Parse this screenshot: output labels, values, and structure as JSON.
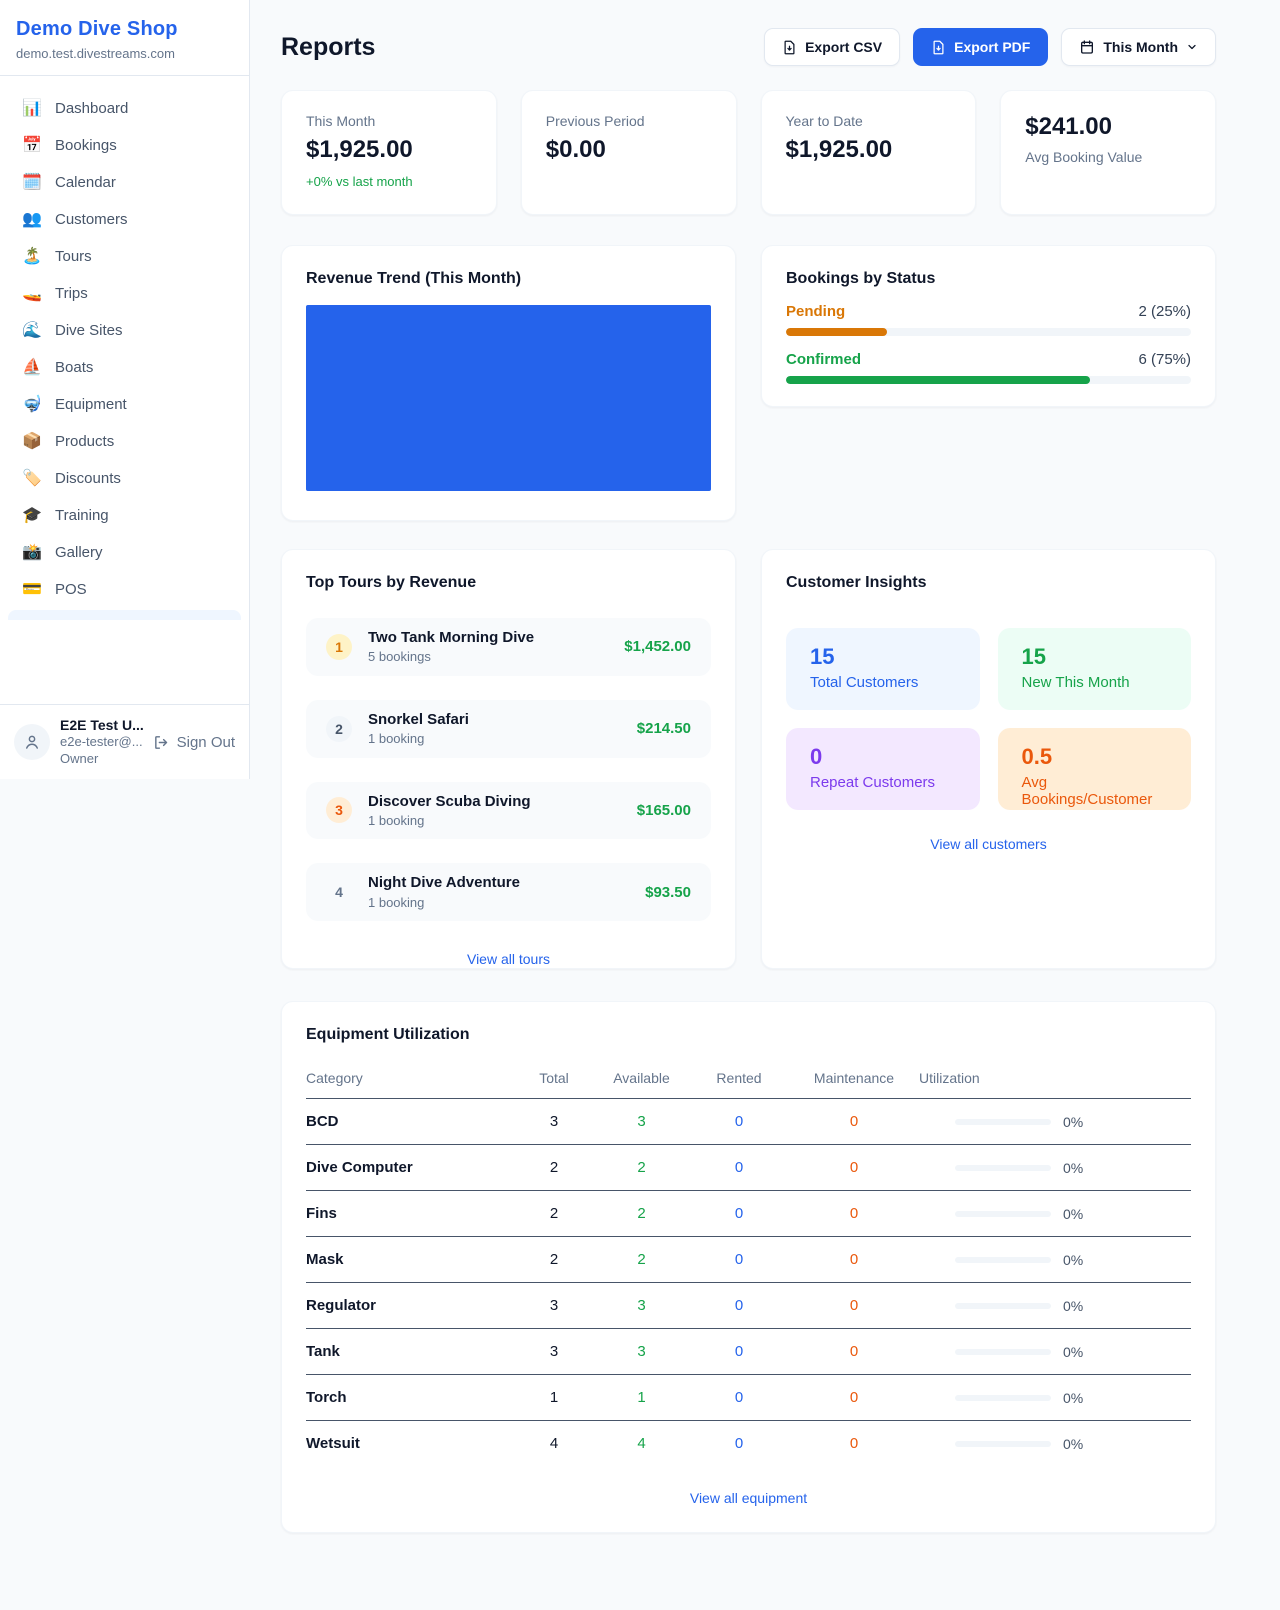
{
  "colors": {
    "accent": "#2563eb",
    "green": "#16a34a",
    "orange": "#d97706",
    "deep_orange": "#ea580c",
    "purple": "#7c3aed"
  },
  "sidebar": {
    "brand": "Demo Dive Shop",
    "domain": "demo.test.divestreams.com",
    "items": [
      {
        "slug": "dashboard",
        "icon": "📊",
        "label": "Dashboard"
      },
      {
        "slug": "bookings",
        "icon": "📅",
        "label": "Bookings"
      },
      {
        "slug": "calendar",
        "icon": "🗓️",
        "label": "Calendar"
      },
      {
        "slug": "customers",
        "icon": "👥",
        "label": "Customers"
      },
      {
        "slug": "tours",
        "icon": "🏝️",
        "label": "Tours"
      },
      {
        "slug": "trips",
        "icon": "🚤",
        "label": "Trips"
      },
      {
        "slug": "dive-sites",
        "icon": "🌊",
        "label": "Dive Sites"
      },
      {
        "slug": "boats",
        "icon": "⛵",
        "label": "Boats"
      },
      {
        "slug": "equipment",
        "icon": "🤿",
        "label": "Equipment"
      },
      {
        "slug": "products",
        "icon": "📦",
        "label": "Products"
      },
      {
        "slug": "discounts",
        "icon": "🏷️",
        "label": "Discounts"
      },
      {
        "slug": "training",
        "icon": "🎓",
        "label": "Training"
      },
      {
        "slug": "gallery",
        "icon": "📸",
        "label": "Gallery"
      },
      {
        "slug": "pos",
        "icon": "💳",
        "label": "POS"
      }
    ],
    "user": {
      "name": "E2E Test U...",
      "email": "e2e-tester@...",
      "role": "Owner",
      "sign_out": "Sign Out"
    }
  },
  "header": {
    "title": "Reports",
    "export_csv": "Export CSV",
    "export_pdf": "Export PDF",
    "period": "This Month"
  },
  "stats": [
    {
      "label": "This Month",
      "value": "$1,925.00",
      "delta": "+0% vs last month"
    },
    {
      "label": "Previous Period",
      "value": "$0.00"
    },
    {
      "label": "Year to Date",
      "value": "$1,925.00"
    },
    {
      "label": "Avg Booking Value",
      "value": "$241.00",
      "value_first": true
    }
  ],
  "revenue_trend": {
    "title": "Revenue Trend (This Month)",
    "chart": {
      "type": "bar",
      "bar_color": "#2563eb",
      "note": "single solid full-width bar, no axis labels visible"
    }
  },
  "bookings_by_status": {
    "title": "Bookings by Status",
    "rows": [
      {
        "label": "Pending",
        "value_text": "2 (25%)",
        "pct": 25,
        "color": "#d97706"
      },
      {
        "label": "Confirmed",
        "value_text": "6 (75%)",
        "pct": 75,
        "color": "#16a34a"
      }
    ]
  },
  "top_tours": {
    "title": "Top Tours by Revenue",
    "items": [
      {
        "rank": "1",
        "name": "Two Tank Morning Dive",
        "sub": "5 bookings",
        "amount": "$1,452.00",
        "badge_bg": "#fef3c7",
        "badge_fg": "#d97706"
      },
      {
        "rank": "2",
        "name": "Snorkel Safari",
        "sub": "1 booking",
        "amount": "$214.50",
        "badge_bg": "#f1f5f9",
        "badge_fg": "#475569"
      },
      {
        "rank": "3",
        "name": "Discover Scuba Diving",
        "sub": "1 booking",
        "amount": "$165.00",
        "badge_bg": "#ffedd5",
        "badge_fg": "#ea580c"
      },
      {
        "rank": "4",
        "name": "Night Dive Adventure",
        "sub": "1 booking",
        "amount": "$93.50",
        "badge_bg": "transparent",
        "badge_fg": "#64748b"
      }
    ],
    "view_all": "View all tours"
  },
  "customer_insights": {
    "title": "Customer Insights",
    "tiles": [
      {
        "value": "15",
        "label": "Total Customers",
        "bg": "#eff6ff",
        "fg": "#2563eb"
      },
      {
        "value": "15",
        "label": "New This Month",
        "bg": "#ecfdf5",
        "fg": "#16a34a"
      },
      {
        "value": "0",
        "label": "Repeat Customers",
        "bg": "#f3e8ff",
        "fg": "#7c3aed"
      },
      {
        "value": "0.5",
        "label": "Avg Bookings/Customer",
        "bg": "#ffedd5",
        "fg": "#ea580c"
      }
    ],
    "view_all": "View all customers"
  },
  "equipment": {
    "title": "Equipment Utilization",
    "columns": [
      "Category",
      "Total",
      "Available",
      "Rented",
      "Maintenance",
      "Utilization"
    ],
    "rows": [
      {
        "category": "BCD",
        "total": "3",
        "available": "3",
        "rented": "0",
        "maintenance": "0",
        "utilization": "0%"
      },
      {
        "category": "Dive Computer",
        "total": "2",
        "available": "2",
        "rented": "0",
        "maintenance": "0",
        "utilization": "0%"
      },
      {
        "category": "Fins",
        "total": "2",
        "available": "2",
        "rented": "0",
        "maintenance": "0",
        "utilization": "0%"
      },
      {
        "category": "Mask",
        "total": "2",
        "available": "2",
        "rented": "0",
        "maintenance": "0",
        "utilization": "0%"
      },
      {
        "category": "Regulator",
        "total": "3",
        "available": "3",
        "rented": "0",
        "maintenance": "0",
        "utilization": "0%"
      },
      {
        "category": "Tank",
        "total": "3",
        "available": "3",
        "rented": "0",
        "maintenance": "0",
        "utilization": "0%"
      },
      {
        "category": "Torch",
        "total": "1",
        "available": "1",
        "rented": "0",
        "maintenance": "0",
        "utilization": "0%"
      },
      {
        "category": "Wetsuit",
        "total": "4",
        "available": "4",
        "rented": "0",
        "maintenance": "0",
        "utilization": "0%"
      }
    ],
    "view_all": "View all equipment"
  }
}
